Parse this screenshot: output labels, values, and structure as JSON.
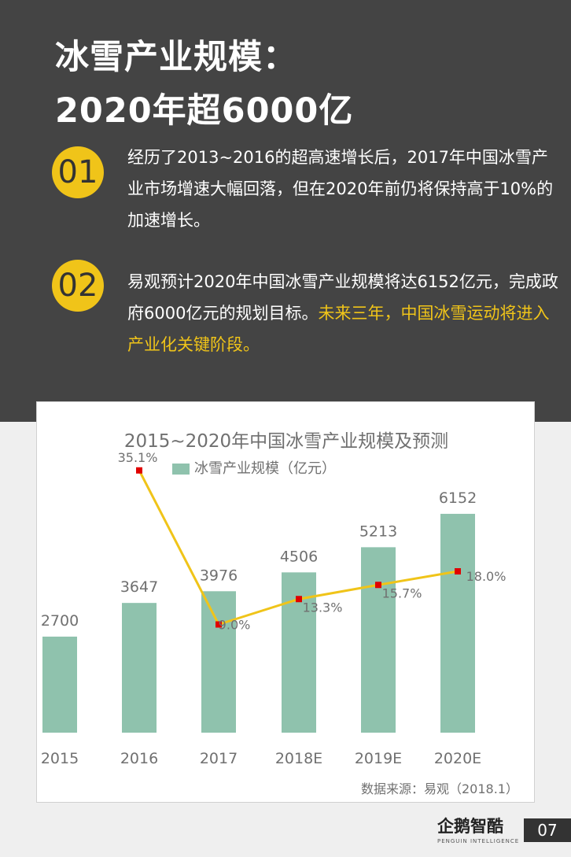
{
  "header": {
    "title_line1": "冰雪产业规模：",
    "title_line2": "2020年超6000亿"
  },
  "points": [
    {
      "number": "01",
      "text": "经历了2013~2016的超高速增长后，2017年中国冰雪产业市场增速大幅回落，但在2020年前仍将保持高于10%的加速增长。",
      "highlight": ""
    },
    {
      "number": "02",
      "text": "易观预计2020年中国冰雪产业规模将达6152亿元，完成政府6000亿元的规划目标。",
      "highlight": "未来三年，中国冰雪运动将进入产业化关键阶段。"
    }
  ],
  "chart_data": {
    "type": "bar",
    "title": "2015~2020年中国冰雪产业规模及预测",
    "categories": [
      "2015",
      "2016",
      "2017",
      "2018E",
      "2019E",
      "2020E"
    ],
    "series": [
      {
        "name": "冰雪产业规模（亿元）",
        "type": "bar",
        "values": [
          2700,
          3647,
          3976,
          4506,
          5213,
          6152
        ]
      },
      {
        "type": "line",
        "values": [
          null,
          35.1,
          9.0,
          13.3,
          15.7,
          18.0
        ],
        "labels": [
          "",
          "35.1%",
          "9.0%",
          "13.3%",
          "15.7%",
          "18.0%"
        ]
      }
    ],
    "colors": {
      "bar": "#8fc2ad",
      "line": "#f0c419",
      "marker": "#e00000"
    },
    "source": "数据来源：易观（2018.1）"
  },
  "footer": {
    "brand": "企鹅智酷",
    "brand_sub": "PENGUIN INTELLIGENCE",
    "page_number": "07"
  }
}
